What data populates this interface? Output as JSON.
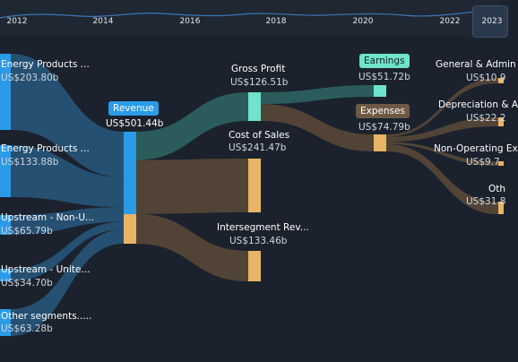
{
  "timeline": {
    "years": [
      "2012",
      "2014",
      "2016",
      "2018",
      "2020",
      "2022",
      "2023"
    ],
    "selected": "2023"
  },
  "colors": {
    "revenue": "#2b9be8",
    "gross_profit": "#70e3cb",
    "cost": "#e8b466",
    "earnings": "#70e3cb",
    "background": "#1b222d"
  },
  "chart_data": {
    "type": "sankey",
    "currency": "US$",
    "nodes": [
      {
        "id": "energy1",
        "label": "Energy Products ...",
        "value_label": "US$203.80b",
        "value": 203.8
      },
      {
        "id": "energy2",
        "label": "Energy Products ...",
        "value_label": "US$133.88b",
        "value": 133.88
      },
      {
        "id": "upstream_non",
        "label": "Upstream - Non-U...",
        "value_label": "US$65.79b",
        "value": 65.79
      },
      {
        "id": "upstream_us",
        "label": "Upstream - Unite...",
        "value_label": "US$34.70b",
        "value": 34.7
      },
      {
        "id": "other_seg",
        "label": "Other segments.....",
        "value_label": "US$63.28b",
        "value": 63.28
      },
      {
        "id": "revenue",
        "label": "Revenue",
        "value_label": "US$501.44b",
        "value": 501.44
      },
      {
        "id": "gross_profit",
        "label": "Gross Profit",
        "value_label": "US$126.51b",
        "value": 126.51
      },
      {
        "id": "cost_of_sales",
        "label": "Cost of Sales",
        "value_label": "US$241.47b",
        "value": 241.47
      },
      {
        "id": "intersegment",
        "label": "Intersegment Rev...",
        "value_label": "US$133.46b",
        "value": 133.46
      },
      {
        "id": "earnings",
        "label": "Earnings",
        "value_label": "US$51.72b",
        "value": 51.72
      },
      {
        "id": "expenses",
        "label": "Expenses",
        "value_label": "US$74.79b",
        "value": 74.79
      },
      {
        "id": "gen_admin",
        "label": "General & Admin",
        "value_label": "US$10.9",
        "value": 10.9
      },
      {
        "id": "depreciation",
        "label": "Depreciation & A",
        "value_label": "US$22.2",
        "value": 22.2
      },
      {
        "id": "non_operating",
        "label": "Non-Operating Ex",
        "value_label": "US$9.7",
        "value": 9.7
      },
      {
        "id": "other",
        "label": "Oth",
        "value_label": "US$31.8",
        "value": 31.8
      }
    ],
    "links": [
      {
        "source": "energy1",
        "target": "revenue",
        "value": 203.8
      },
      {
        "source": "energy2",
        "target": "revenue",
        "value": 133.88
      },
      {
        "source": "upstream_non",
        "target": "revenue",
        "value": 65.79
      },
      {
        "source": "upstream_us",
        "target": "revenue",
        "value": 34.7
      },
      {
        "source": "other_seg",
        "target": "revenue",
        "value": 63.28
      },
      {
        "source": "revenue",
        "target": "gross_profit",
        "value": 126.51
      },
      {
        "source": "revenue",
        "target": "cost_of_sales",
        "value": 241.47
      },
      {
        "source": "revenue",
        "target": "intersegment",
        "value": 133.46
      },
      {
        "source": "gross_profit",
        "target": "earnings",
        "value": 51.72
      },
      {
        "source": "gross_profit",
        "target": "expenses",
        "value": 74.79
      },
      {
        "source": "expenses",
        "target": "gen_admin",
        "value": 10.9
      },
      {
        "source": "expenses",
        "target": "depreciation",
        "value": 22.2
      },
      {
        "source": "expenses",
        "target": "non_operating",
        "value": 9.7
      },
      {
        "source": "expenses",
        "target": "other",
        "value": 31.8
      }
    ]
  }
}
